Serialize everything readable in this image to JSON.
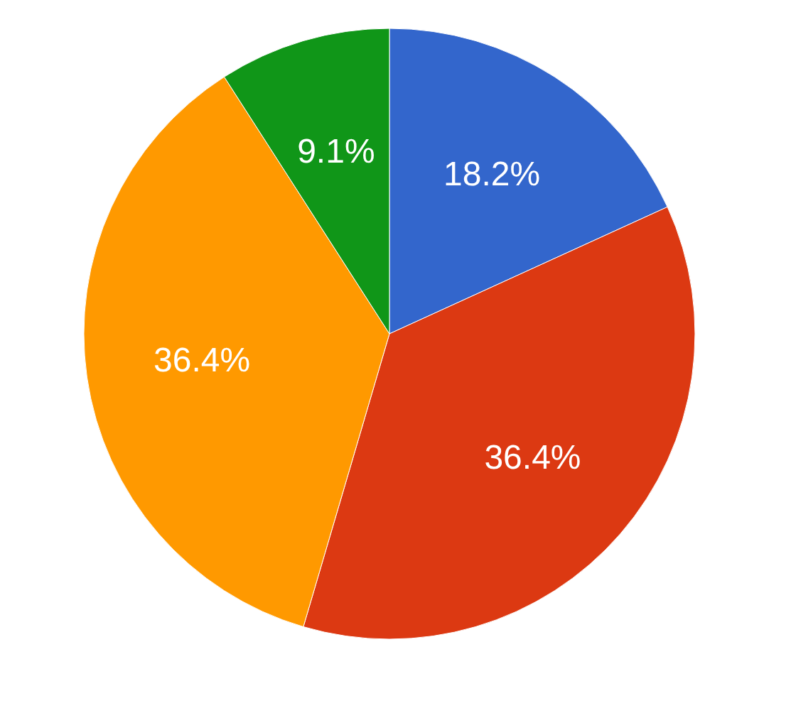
{
  "chart_data": {
    "type": "pie",
    "categories": [
      null,
      null,
      null,
      null
    ],
    "values": [
      18.2,
      36.4,
      36.4,
      9.1
    ],
    "colors": [
      "#3366cc",
      "#dc3912",
      "#ff9900",
      "#109618"
    ],
    "value_labels": [
      "18.2%",
      "36.4%",
      "36.4%",
      "9.1%"
    ]
  }
}
